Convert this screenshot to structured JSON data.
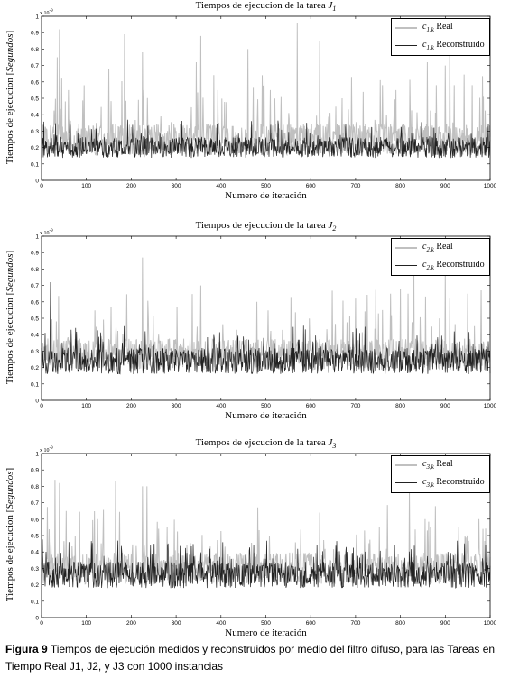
{
  "colors": {
    "real": "#c0c0c0",
    "reconstructed": "#222222",
    "axis": "#000000"
  },
  "caption": {
    "label": "Figura 9",
    "text": "Tiempos de ejecución medidos y reconstruidos por medio del filtro difuso, para las Tareas en Tiempo Real J1, J2, y J3 con 1000 instancias"
  },
  "chart_data": [
    {
      "type": "line",
      "title": "Tiempos de ejecucion de la tarea J1",
      "xlabel": "Numero de iteración",
      "ylabel": "Tiempos de ejecucion [Segundos]",
      "y_exponent": "x 10-9",
      "xlim": [
        0,
        1000
      ],
      "ylim": [
        0,
        1
      ],
      "xticks": [
        0,
        100,
        200,
        300,
        400,
        500,
        600,
        700,
        800,
        900,
        1000
      ],
      "yticks": [
        0,
        0.1,
        0.2,
        0.3,
        0.4,
        0.5,
        0.6,
        0.7,
        0.8,
        0.9,
        1
      ],
      "legend_position": "top-right",
      "series": [
        {
          "name": "c1,k Real",
          "color": "#c0c0c0",
          "style": "noisy",
          "base": 0.25,
          "spread": 0.12,
          "peaks": [
            [
              35,
              0.75
            ],
            [
              40,
              0.92
            ],
            [
              45,
              0.62
            ],
            [
              60,
              0.55
            ],
            [
              150,
              0.68
            ],
            [
              185,
              0.89
            ],
            [
              225,
              0.78
            ],
            [
              345,
              0.72
            ],
            [
              355,
              0.88
            ],
            [
              460,
              0.8
            ],
            [
              510,
              0.55
            ],
            [
              570,
              0.96
            ],
            [
              620,
              0.85
            ],
            [
              760,
              0.58
            ],
            [
              790,
              0.55
            ],
            [
              860,
              0.72
            ],
            [
              880,
              0.58
            ],
            [
              900,
              0.7
            ],
            [
              910,
              0.95
            ],
            [
              920,
              0.58
            ],
            [
              960,
              0.58
            ]
          ]
        },
        {
          "name": "c1,k Reconstruido",
          "color": "#222222",
          "style": "noisy",
          "base": 0.2,
          "spread": 0.08,
          "peaks": []
        }
      ]
    },
    {
      "type": "line",
      "title": "Tiempos de ejecucion de la tarea J2",
      "xlabel": "Numero de iteración",
      "ylabel": "Tiempos de ejecucion [Segundos]",
      "y_exponent": "x 10-9",
      "xlim": [
        0,
        1000
      ],
      "ylim": [
        0,
        1
      ],
      "xticks": [
        0,
        100,
        200,
        300,
        400,
        500,
        600,
        700,
        800,
        900,
        1000
      ],
      "yticks": [
        0,
        0.1,
        0.2,
        0.3,
        0.4,
        0.5,
        0.6,
        0.7,
        0.8,
        0.9,
        1
      ],
      "legend_position": "top-right",
      "series": [
        {
          "name": "c2,k Real",
          "color": "#c0c0c0",
          "style": "noisy",
          "base": 0.28,
          "spread": 0.12,
          "peaks": [
            [
              20,
              0.58
            ],
            [
              155,
              0.57
            ],
            [
              225,
              0.87
            ],
            [
              355,
              0.7
            ],
            [
              480,
              0.6
            ],
            [
              700,
              0.62
            ],
            [
              760,
              0.55
            ],
            [
              800,
              0.68
            ],
            [
              830,
              0.8
            ],
            [
              900,
              0.78
            ],
            [
              910,
              0.62
            ],
            [
              950,
              0.65
            ],
            [
              980,
              0.67
            ]
          ]
        },
        {
          "name": "c2,k Reconstruido",
          "color": "#222222",
          "style": "noisy",
          "base": 0.24,
          "spread": 0.1,
          "peaks": [
            [
              20,
              0.72
            ]
          ]
        }
      ]
    },
    {
      "type": "line",
      "title": "Tiempos de ejecucion de la tarea J3",
      "xlabel": "Numero de iteración",
      "ylabel": "Tiempos de ejecucion [Segundos]",
      "y_exponent": "x 10-9",
      "xlim": [
        0,
        1000
      ],
      "ylim": [
        0,
        1
      ],
      "xticks": [
        0,
        100,
        200,
        300,
        400,
        500,
        600,
        700,
        800,
        900,
        1000
      ],
      "yticks": [
        0,
        0.1,
        0.2,
        0.3,
        0.4,
        0.5,
        0.6,
        0.7,
        0.8,
        0.9,
        1
      ],
      "legend_position": "top-right",
      "series": [
        {
          "name": "c3,k Real",
          "color": "#c0c0c0",
          "style": "noisy",
          "base": 0.3,
          "spread": 0.12,
          "peaks": [
            [
              30,
              0.84
            ],
            [
              40,
              0.82
            ],
            [
              55,
              0.65
            ],
            [
              125,
              0.6
            ],
            [
              165,
              0.83
            ],
            [
              225,
              0.8
            ],
            [
              235,
              0.8
            ],
            [
              280,
              0.55
            ],
            [
              620,
              0.64
            ],
            [
              820,
              0.78
            ],
            [
              855,
              0.6
            ],
            [
              930,
              0.55
            ],
            [
              975,
              0.6
            ]
          ]
        },
        {
          "name": "c3,k Reconstruido",
          "color": "#222222",
          "style": "noisy",
          "base": 0.26,
          "spread": 0.1,
          "peaks": []
        }
      ]
    }
  ],
  "panels": [
    {
      "title_main": "Tiempos de ejecucion de la tarea ",
      "title_sym": "J",
      "title_sub": "1",
      "legend": [
        {
          "sym": "c",
          "sub": "1,k",
          "text": " Real"
        },
        {
          "sym": "c",
          "sub": "1,k",
          "text": " Reconstruido"
        }
      ]
    },
    {
      "title_main": "Tiempos de ejecucion de la tarea ",
      "title_sym": "J",
      "title_sub": "2",
      "legend": [
        {
          "sym": "c",
          "sub": "2,k",
          "text": " Real"
        },
        {
          "sym": "c",
          "sub": "2,k",
          "text": " Reconstruido"
        }
      ]
    },
    {
      "title_main": "Tiempos de ejecucion de la tarea ",
      "title_sym": "J",
      "title_sub": "3",
      "legend": [
        {
          "sym": "c",
          "sub": "3,k",
          "text": " Real"
        },
        {
          "sym": "c",
          "sub": "3,k",
          "text": " Reconstruido"
        }
      ]
    }
  ],
  "axis_text": {
    "ylabel_main": "Tiempos de ejecucion [",
    "ylabel_italic": "Segundos",
    "ylabel_end": "]",
    "xlabel": "Numero de iteración",
    "exp_base": "x 10",
    "exp_power": "-9"
  }
}
